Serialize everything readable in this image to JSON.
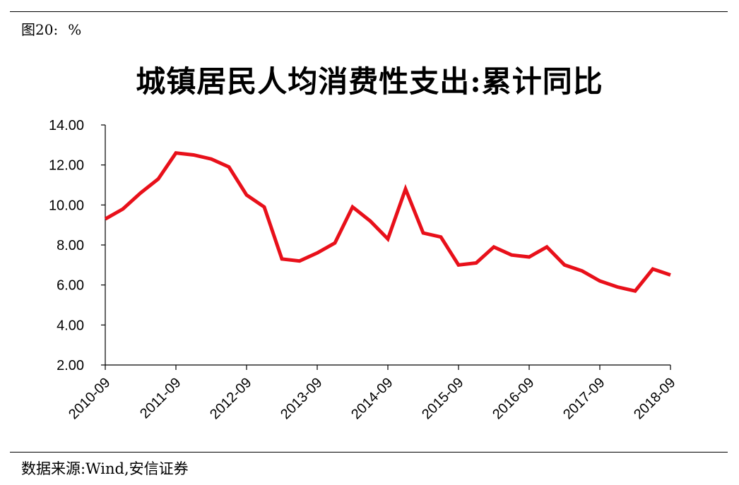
{
  "figure_label": {
    "number": "图20:",
    "unit": "%"
  },
  "source": "数据来源:Wind,安信证券",
  "chart_data": {
    "type": "line",
    "title": "城镇居民人均消费性支出:累计同比",
    "xlabel": "",
    "ylabel": "",
    "ylim": [
      2,
      14
    ],
    "y_ticks": [
      "2.00",
      "4.00",
      "6.00",
      "8.00",
      "10.00",
      "12.00",
      "14.00"
    ],
    "x_ticks": [
      "2010-09",
      "2011-09",
      "2012-09",
      "2013-09",
      "2014-09",
      "2015-09",
      "2016-09",
      "2017-09",
      "2018-09"
    ],
    "grid": false,
    "legend": "none",
    "series_color": "#e8101a",
    "x": [
      "2010-09",
      "2010-12",
      "2011-03",
      "2011-06",
      "2011-09",
      "2011-12",
      "2012-03",
      "2012-06",
      "2012-09",
      "2012-12",
      "2013-03",
      "2013-06",
      "2013-09",
      "2013-12",
      "2014-03",
      "2014-06",
      "2014-09",
      "2014-12",
      "2015-03",
      "2015-06",
      "2015-09",
      "2015-12",
      "2016-03",
      "2016-06",
      "2016-09",
      "2016-12",
      "2017-03",
      "2017-06",
      "2017-09",
      "2017-12",
      "2018-03",
      "2018-06",
      "2018-09"
    ],
    "series": [
      {
        "values": [
          9.3,
          9.8,
          10.6,
          11.3,
          12.6,
          12.5,
          12.3,
          11.9,
          10.5,
          9.9,
          7.3,
          7.2,
          7.6,
          8.1,
          9.9,
          9.2,
          8.3,
          10.8,
          8.6,
          8.4,
          7.0,
          7.1,
          7.9,
          7.5,
          7.4,
          7.9,
          7.0,
          6.7,
          6.2,
          5.9,
          5.7,
          6.8,
          6.5
        ]
      }
    ]
  }
}
